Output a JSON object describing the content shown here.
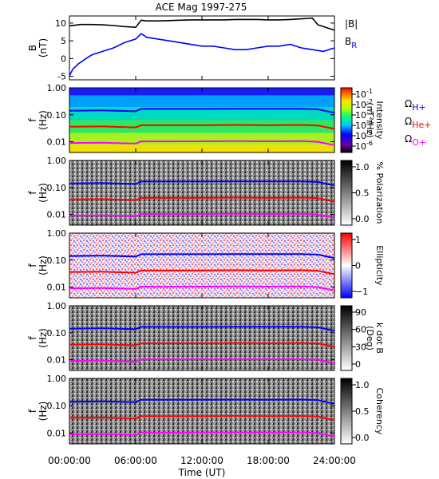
{
  "chart_data": {
    "type": "heatmap",
    "title": "ACE Mag 1997-275",
    "xlabel": "Time (UT)",
    "x_ticks": [
      "00:00:00",
      "06:00:00",
      "12:00:00",
      "18:00:00",
      "24:00:00"
    ],
    "xlim_hours": [
      0,
      24
    ],
    "colors": {
      "B_total": "#000000",
      "B_R": "#0000ff",
      "gyro_H": "#0000ff",
      "gyro_He": "#ff0000",
      "gyro_O": "#ff00ff"
    },
    "panels": [
      {
        "name": "field",
        "type": "line",
        "ylabel": "B",
        "yunit": "(nT)",
        "ylim": [
          -6,
          12
        ],
        "yticks": [
          "10",
          "5",
          "0",
          "-5"
        ],
        "legend": {
          "total": "|B|",
          "radial": "B",
          "radial_sub": "R"
        },
        "series": [
          {
            "key": "B_total",
            "hours": [
              0,
              0.5,
              1,
              2,
              3,
              4,
              5,
              6,
              6.5,
              7,
              8,
              9,
              10,
              11,
              12,
              13,
              14,
              15,
              16,
              17,
              18,
              19,
              20,
              21,
              22,
              22.5,
              23,
              23.5,
              24
            ],
            "values": [
              9.2,
              9.4,
              9.6,
              9.6,
              9.5,
              9.3,
              9.0,
              8.8,
              10.8,
              10.6,
              10.6,
              10.7,
              10.8,
              10.9,
              10.9,
              10.9,
              10.9,
              11.0,
              11.0,
              11.0,
              10.9,
              10.9,
              11.0,
              11.2,
              11.4,
              9.5,
              9.0,
              8.5,
              8.0
            ]
          },
          {
            "key": "B_R",
            "hours": [
              0,
              0.3,
              0.8,
              1.5,
              2,
              3,
              4,
              5,
              6,
              6.5,
              7,
              8,
              9,
              10,
              11,
              12,
              13,
              14,
              15,
              16,
              17,
              18,
              19,
              20,
              21,
              22,
              23,
              24
            ],
            "values": [
              -4.8,
              -3.0,
              -1.5,
              0.0,
              1.0,
              2.0,
              3.0,
              4.5,
              5.5,
              7.0,
              6.0,
              5.5,
              5.0,
              4.5,
              4.0,
              3.5,
              3.5,
              3.0,
              2.5,
              2.5,
              3.0,
              3.5,
              3.5,
              4.0,
              3.0,
              2.5,
              2.0,
              3.0
            ]
          }
        ]
      },
      {
        "name": "intensity",
        "type": "heatmap",
        "ylabel": "f",
        "yunit": "(Hz)",
        "yscale": "log",
        "ylim": [
          0.004,
          1.0
        ],
        "yticks": [
          "1.00",
          "0.10",
          "0.01"
        ],
        "colorbar": {
          "label": "Intensity",
          "unit": "(nT²/Hz)",
          "ticks": [
            "10",
            "10",
            "10",
            "10",
            "10",
            "10"
          ],
          "exponents": [
            "-1",
            "-2",
            "-3",
            "-4",
            "-5",
            "-6"
          ],
          "scheme": "rainbow"
        },
        "gyro_labels": [
          {
            "main": "Ω",
            "sub": "H+"
          },
          {
            "main": "Ω",
            "sub": "He+"
          },
          {
            "main": "Ω",
            "sub": "O+"
          }
        ]
      },
      {
        "name": "polarization",
        "type": "heatmap",
        "ylabel": "f",
        "yunit": "(Hz)",
        "yscale": "log",
        "ylim": [
          0.004,
          1.0
        ],
        "yticks": [
          "1.00",
          "0.10",
          "0.01"
        ],
        "colorbar": {
          "label": "% Polarization",
          "unit": "",
          "ticks": [
            "1.0",
            "0.5",
            "0.0"
          ],
          "scheme": "gray"
        }
      },
      {
        "name": "ellipticity",
        "type": "heatmap",
        "ylabel": "f",
        "yunit": "(Hz)",
        "yscale": "log",
        "ylim": [
          0.004,
          1.0
        ],
        "yticks": [
          "1.00",
          "0.10",
          "0.01"
        ],
        "colorbar": {
          "label": "Ellipticity",
          "unit": "",
          "ticks": [
            "1",
            "0",
            "−1"
          ],
          "scheme": "redblue"
        }
      },
      {
        "name": "kdotb",
        "type": "heatmap",
        "ylabel": "f",
        "yunit": "(Hz)",
        "yscale": "log",
        "ylim": [
          0.004,
          1.0
        ],
        "yticks": [
          "1.00",
          "0.10",
          "0.01"
        ],
        "colorbar": {
          "label": "k dot B",
          "unit": "(Deg)",
          "ticks": [
            "90",
            "60",
            "30",
            "0"
          ],
          "scheme": "gray"
        }
      },
      {
        "name": "coherency",
        "type": "heatmap",
        "ylabel": "f",
        "yunit": "(Hz)",
        "yscale": "log",
        "ylim": [
          0.004,
          1.0
        ],
        "yticks": [
          "1.00",
          "0.10",
          "0.01"
        ],
        "colorbar": {
          "label": "Coherency",
          "unit": "",
          "ticks": [
            "1.0",
            "0.5",
            "0.0"
          ],
          "scheme": "gray"
        }
      }
    ],
    "gyrofrequency_lines_hz": [
      {
        "ion": "H+",
        "color": "#0000ff",
        "hours": [
          0,
          3,
          6,
          6.5,
          9,
          12,
          15,
          18,
          21,
          22.5,
          23.5,
          24
        ],
        "values": [
          0.14,
          0.145,
          0.135,
          0.165,
          0.165,
          0.165,
          0.167,
          0.166,
          0.168,
          0.16,
          0.13,
          0.12
        ]
      },
      {
        "ion": "He+",
        "color": "#ff0000",
        "hours": [
          0,
          3,
          6,
          6.5,
          9,
          12,
          15,
          18,
          21,
          22.5,
          23.5,
          24
        ],
        "values": [
          0.036,
          0.037,
          0.034,
          0.041,
          0.041,
          0.041,
          0.042,
          0.041,
          0.042,
          0.04,
          0.033,
          0.03
        ]
      },
      {
        "ion": "O+",
        "color": "#ff00ff",
        "hours": [
          0,
          3,
          6,
          6.5,
          9,
          12,
          15,
          18,
          21,
          22.5,
          23.5,
          24
        ],
        "values": [
          0.009,
          0.0092,
          0.0085,
          0.0104,
          0.0103,
          0.0104,
          0.0105,
          0.0104,
          0.0105,
          0.01,
          0.0082,
          0.0075
        ]
      }
    ]
  }
}
